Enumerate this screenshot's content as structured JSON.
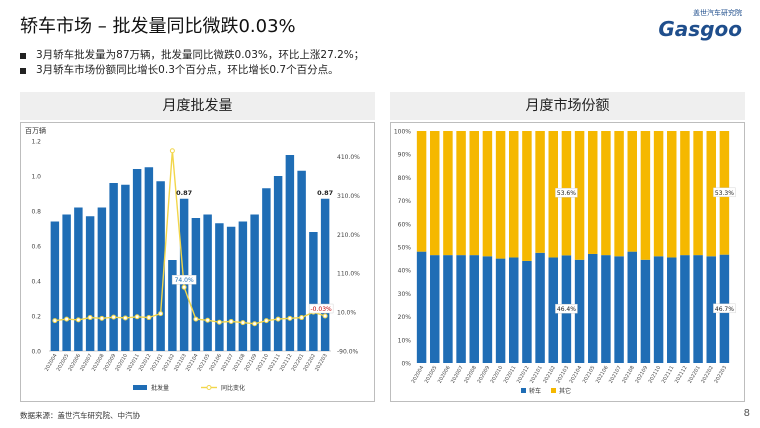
{
  "slide": {
    "title": "轿车市场 – 批发量同比微跌0.03%",
    "bullets": [
      "3月轿车批发量为87万辆，批发量同比微跌0.03%，环比上涨27.2%；",
      "3月轿车市场份额同比增长0.3个百分点，环比增长0.7个百分点。"
    ],
    "footer": "数据来源：盖世汽车研究院、中汽协",
    "page_number": "8"
  },
  "logo": {
    "top": "盖世汽车研究院",
    "main": "Gasgoo"
  },
  "colors": {
    "blue": "#1f6db5",
    "yellow": "#f5b800",
    "line": "#f2d64b"
  },
  "chart_data": [
    {
      "type": "bar",
      "title": "月度批发量",
      "ylabel": "百万辆",
      "ylim": [
        0,
        1.2
      ],
      "yticks": [
        "0.0",
        "0.2",
        "0.4",
        "0.6",
        "0.8",
        "1.0",
        "1.2"
      ],
      "y2lim": [
        -90,
        450
      ],
      "y2ticks": [
        "-90.0%",
        "10.0%",
        "110.0%",
        "210.0%",
        "310.0%",
        "410.0%"
      ],
      "categories": [
        "202004",
        "202005",
        "202006",
        "202007",
        "202008",
        "202009",
        "202010",
        "202011",
        "202012",
        "202101",
        "202102",
        "202103",
        "202104",
        "202105",
        "202106",
        "202107",
        "202108",
        "202109",
        "202110",
        "202111",
        "202112",
        "202201",
        "202202",
        "202203"
      ],
      "series": [
        {
          "name": "批发量",
          "kind": "bar",
          "values": [
            0.74,
            0.78,
            0.82,
            0.77,
            0.82,
            0.96,
            0.95,
            1.04,
            1.05,
            0.97,
            0.52,
            0.87,
            0.76,
            0.78,
            0.73,
            0.71,
            0.74,
            0.78,
            0.93,
            1.0,
            1.12,
            1.03,
            0.68,
            0.87
          ]
        },
        {
          "name": "同比变化",
          "kind": "line",
          "values": [
            -12,
            -8,
            -10,
            -4,
            -6,
            -3,
            -5,
            -2,
            -4,
            6,
            425,
            74,
            -8,
            -11,
            -16,
            -14,
            -17,
            -20,
            -12,
            -8,
            -6,
            -4,
            10,
            -0.03
          ]
        }
      ],
      "data_labels": [
        {
          "index": 11,
          "series": 0,
          "text": "0.87"
        },
        {
          "index": 23,
          "series": 0,
          "text": "0.87"
        },
        {
          "index": 11,
          "series": 1,
          "text": "74.0%"
        },
        {
          "index": 23,
          "series": 1,
          "text": "-0.03%"
        }
      ],
      "legend": "bottom"
    },
    {
      "type": "bar",
      "stacked": true,
      "title": "月度市场份额",
      "ylim": [
        0,
        100
      ],
      "yticks": [
        "0%",
        "10%",
        "20%",
        "30%",
        "40%",
        "50%",
        "60%",
        "70%",
        "80%",
        "90%",
        "100%"
      ],
      "categories": [
        "202004",
        "202005",
        "202006",
        "202007",
        "202008",
        "202009",
        "202010",
        "202011",
        "202012",
        "202101",
        "202102",
        "202103",
        "202104",
        "202105",
        "202106",
        "202107",
        "202108",
        "202109",
        "202110",
        "202111",
        "202112",
        "202201",
        "202202",
        "202203"
      ],
      "series": [
        {
          "name": "轿车",
          "values": [
            48.0,
            46.5,
            46.5,
            46.5,
            46.5,
            46.0,
            45.0,
            45.5,
            44.0,
            47.5,
            45.5,
            46.4,
            44.5,
            47.0,
            46.5,
            46.0,
            48.0,
            44.5,
            46.0,
            45.5,
            46.5,
            46.5,
            46.0,
            46.7
          ]
        },
        {
          "name": "其它",
          "values": [
            52.0,
            53.5,
            53.5,
            53.5,
            53.5,
            54.0,
            55.0,
            54.5,
            56.0,
            52.5,
            54.5,
            53.6,
            55.5,
            53.0,
            53.5,
            54.0,
            52.0,
            55.5,
            54.0,
            54.5,
            53.5,
            53.5,
            54.0,
            53.3
          ]
        }
      ],
      "data_labels": [
        {
          "index": 11,
          "series": 1,
          "text": "53.6%"
        },
        {
          "index": 11,
          "series": 0,
          "text": "46.4%"
        },
        {
          "index": 23,
          "series": 1,
          "text": "53.3%"
        },
        {
          "index": 23,
          "series": 0,
          "text": "46.7%"
        }
      ],
      "legend": "bottom"
    }
  ]
}
